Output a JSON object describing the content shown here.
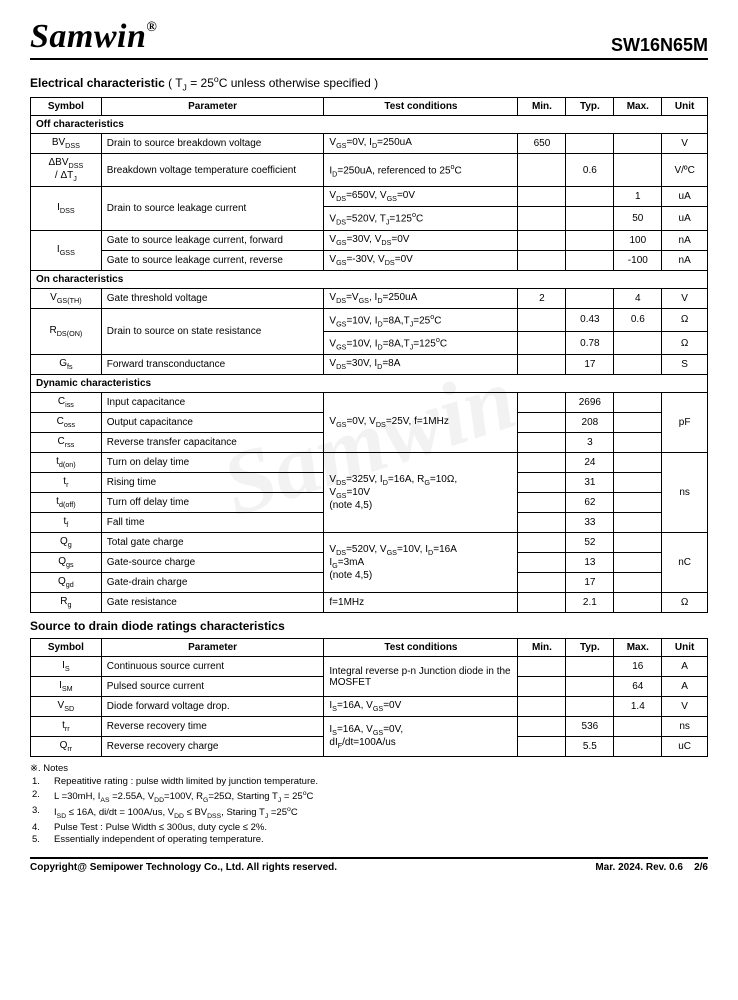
{
  "brand": "Samwin",
  "reg": "®",
  "part_no": "SW16N65M",
  "main_title_prefix": "Electrical characteristic ",
  "main_title_cond": "( T",
  "main_title_cond2": " = 25",
  "main_title_cond3": "C unless otherwise specified )",
  "cols": {
    "symbol": "Symbol",
    "param": "Parameter",
    "cond": "Test conditions",
    "min": "Min.",
    "typ": "Typ.",
    "max": "Max.",
    "unit": "Unit"
  },
  "secs": {
    "off": "Off characteristics",
    "on": "On characteristics",
    "dyn": "Dynamic characteristics"
  },
  "title2": "Source to drain diode ratings characteristics",
  "rows": {
    "bvdss": {
      "sym_pre": "BV",
      "sym_sub": "DSS",
      "param": "Drain to source breakdown voltage",
      "cond": "V_GS=0V, I_D=250uA",
      "min": "650",
      "typ": "",
      "max": "",
      "unit": "V"
    },
    "dbvdss": {
      "sym": "ΔBV_DSS / ΔT_J",
      "param": "Breakdown voltage temperature coefficient",
      "cond": "I_D=250uA, referenced to 25ºC",
      "min": "",
      "typ": "0.6",
      "max": "",
      "unit": "V/ºC"
    },
    "idss1": {
      "cond": "V_DS=650V, V_GS=0V",
      "min": "",
      "typ": "",
      "max": "1",
      "unit": "uA"
    },
    "idss2": {
      "cond": "V_DS=520V, T_J=125ºC",
      "min": "",
      "typ": "",
      "max": "50",
      "unit": "uA"
    },
    "idss_p": "Drain to source leakage current",
    "idss_s_pre": "I",
    "idss_s_sub": "DSS",
    "igss1": {
      "param": "Gate to source leakage current, forward",
      "cond": "V_GS=30V, V_DS=0V",
      "min": "",
      "typ": "",
      "max": "100",
      "unit": "nA"
    },
    "igss2": {
      "param": "Gate to source leakage current, reverse",
      "cond": "V_GS=-30V, V_DS=0V",
      "min": "",
      "typ": "",
      "max": "-100",
      "unit": "nA"
    },
    "igss_s_pre": "I",
    "igss_s_sub": "GSS",
    "vgsth": {
      "sym_pre": "V",
      "sym_sub": "GS(TH)",
      "param": "Gate threshold voltage",
      "cond": "V_DS=V_GS, I_D=250uA",
      "min": "2",
      "typ": "",
      "max": "4",
      "unit": "V"
    },
    "rdson1": {
      "cond": "V_GS=10V, I_D=8A,T_J=25ºC",
      "min": "",
      "typ": "0.43",
      "max": "0.6",
      "unit": "Ω"
    },
    "rdson2": {
      "cond": "V_GS=10V, I_D=8A,T_J=125ºC",
      "min": "",
      "typ": "0.78",
      "max": "",
      "unit": "Ω"
    },
    "rdson_s_pre": "R",
    "rdson_s_sub": "DS(ON)",
    "rdson_p": "Drain to source on state resistance",
    "gfs": {
      "sym_pre": "G",
      "sym_sub": "fs",
      "param": "Forward transconductance",
      "cond": "V_DS=30V, I_D=8A",
      "min": "",
      "typ": "17",
      "max": "",
      "unit": "S"
    },
    "ciss": {
      "sym_pre": "C",
      "sym_sub": "iss",
      "param": "Input capacitance",
      "min": "",
      "typ": "2696",
      "max": "",
      "unitspan": "pF"
    },
    "coss": {
      "sym_pre": "C",
      "sym_sub": "oss",
      "param": "Output capacitance",
      "min": "",
      "typ": "208",
      "max": ""
    },
    "crss": {
      "sym_pre": "C",
      "sym_sub": "rss",
      "param": "Reverse transfer capacitance",
      "min": "",
      "typ": "3",
      "max": ""
    },
    "cap_cond": "V_GS=0V, V_DS=25V, f=1MHz",
    "tdon": {
      "sym_pre": "t",
      "sym_sub": "d(on)",
      "param": "Turn on delay time",
      "min": "",
      "typ": "24",
      "max": ""
    },
    "tr": {
      "sym_pre": "t",
      "sym_sub": "r",
      "param": "Rising time",
      "min": "",
      "typ": "31",
      "max": ""
    },
    "tdoff": {
      "sym_pre": "t",
      "sym_sub": "d(off)",
      "param": "Turn off delay time",
      "min": "",
      "typ": "62",
      "max": ""
    },
    "tf": {
      "sym_pre": "t",
      "sym_sub": "f",
      "param": "Fall time",
      "min": "",
      "typ": "33",
      "max": ""
    },
    "sw_cond": "V_DS=325V, I_D=16A, R_G=10Ω, V_GS=10V\n(note 4,5)",
    "sw_unit": "ns",
    "qg": {
      "sym_pre": "Q",
      "sym_sub": "g",
      "param": "Total gate charge",
      "min": "",
      "typ": "52",
      "max": ""
    },
    "qgs": {
      "sym_pre": "Q",
      "sym_sub": "gs",
      "param": "Gate-source charge",
      "min": "",
      "typ": "13",
      "max": ""
    },
    "qgd": {
      "sym_pre": "Q",
      "sym_sub": "gd",
      "param": "Gate-drain charge",
      "min": "",
      "typ": "17",
      "max": ""
    },
    "q_cond": "V_DS=520V, V_GS=10V, I_D=16A I_G=3mA\n(note 4,5)",
    "q_unit": "nC",
    "rg": {
      "sym_pre": "R",
      "sym_sub": "g",
      "param": "Gate resistance",
      "cond": "f=1MHz",
      "min": "",
      "typ": "2.1",
      "max": "",
      "unit": "Ω"
    },
    "is": {
      "sym_pre": "I",
      "sym_sub": "S",
      "param": "Continuous source current",
      "min": "",
      "typ": "",
      "max": "16",
      "unit": "A"
    },
    "ism": {
      "sym_pre": "I",
      "sym_sub": "SM",
      "param": "Pulsed source current",
      "min": "",
      "typ": "",
      "max": "64",
      "unit": "A"
    },
    "diode_cond": "Integral reverse p-n Junction diode in the MOSFET",
    "vsd": {
      "sym_pre": "V",
      "sym_sub": "SD",
      "param": "Diode forward voltage drop.",
      "cond": "I_S=16A, V_GS=0V",
      "min": "",
      "typ": "",
      "max": "1.4",
      "unit": "V"
    },
    "trr": {
      "sym_pre": "t",
      "sym_sub": "rr",
      "param": "Reverse recovery time",
      "min": "",
      "typ": "536",
      "max": "",
      "unit": "ns"
    },
    "qrr": {
      "sym_pre": "Q",
      "sym_sub": "rr",
      "param": "Reverse recovery charge",
      "min": "",
      "typ": "5.5",
      "max": "",
      "unit": "uC"
    },
    "rec_cond": "I_S=16A, V_GS=0V, dI_F/dt=100A/us"
  },
  "notes_hd": "※. Notes",
  "notes": [
    "Repeatitive rating : pulse width limited by junction temperature.",
    "L =30mH, I_AS =2.55A, V_DD=100V, R_G=25Ω, Starting T_J = 25ºC",
    "I_SD ≤ 16A, di/dt = 100A/us, V_DD ≤ BV_DSS, Staring T_J =25ºC",
    "Pulse Test : Pulse Width ≤ 300us, duty cycle ≤ 2%.",
    "Essentially independent of operating temperature."
  ],
  "ftr_left": "Copyright@ Semipower Technology Co., Ltd. All rights reserved.",
  "ftr_mid": "Mar. 2024. Rev. 0.6",
  "ftr_right": "2/6"
}
